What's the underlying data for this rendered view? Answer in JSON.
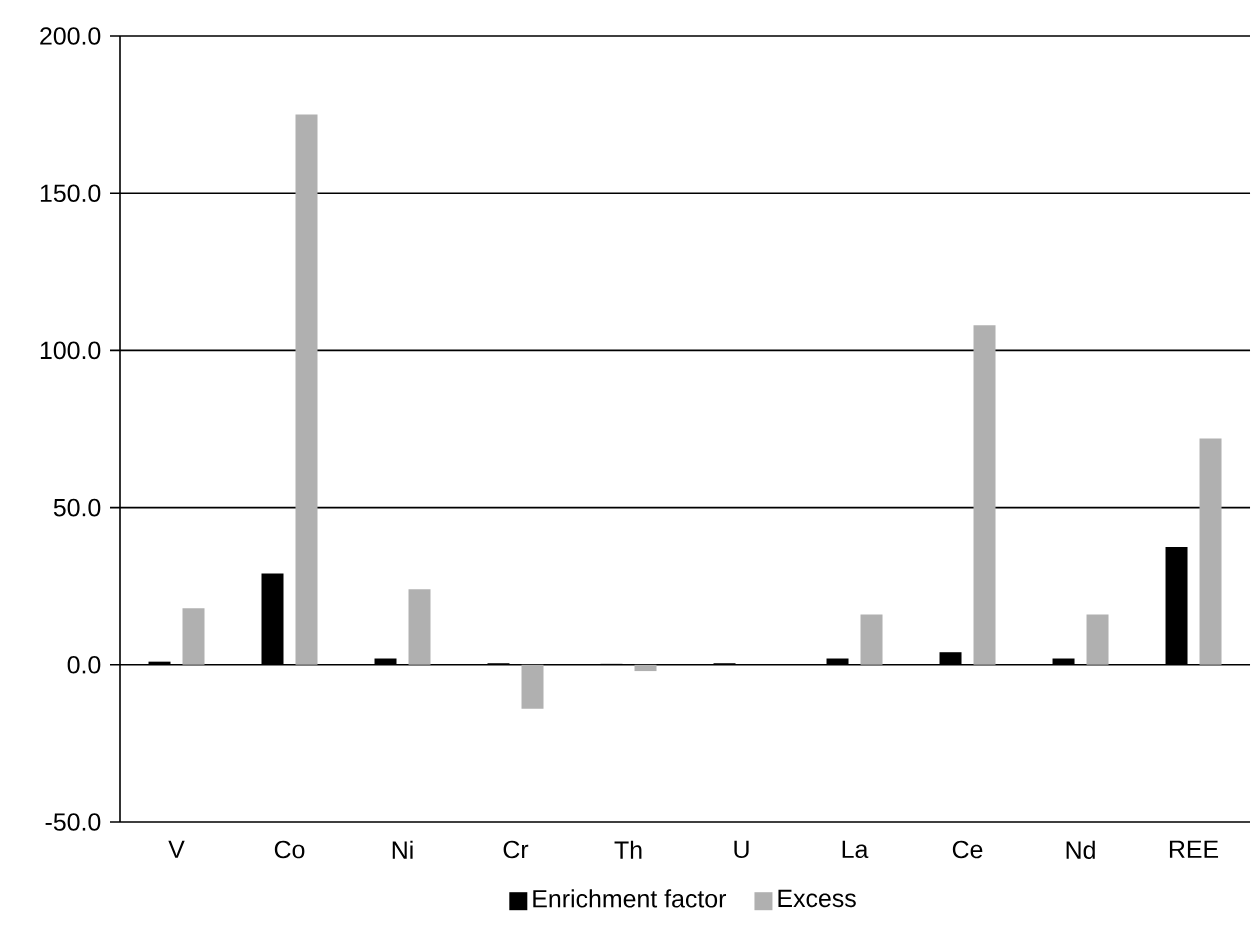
{
  "chart_data": {
    "type": "bar",
    "categories": [
      "V",
      "Co",
      "Ni",
      "Cr",
      "Th",
      "U",
      "La",
      "Ce",
      "Nd",
      "REE"
    ],
    "series": [
      {
        "name": "Enrichment factor",
        "color": "#000000",
        "values": [
          1.0,
          29,
          2.0,
          0.5,
          0.3,
          0.5,
          2.0,
          4.0,
          2.0,
          37.5
        ]
      },
      {
        "name": "Excess",
        "color": "#b0b0b0",
        "values": [
          18,
          175,
          24,
          -14,
          -2,
          0,
          16,
          108,
          16,
          72
        ]
      }
    ],
    "ylim": [
      -50,
      200
    ],
    "yticks": [
      {
        "value": -50,
        "label": "-50.0"
      },
      {
        "value": 0,
        "label": "0.0"
      },
      {
        "value": 50,
        "label": "50.0"
      },
      {
        "value": 100,
        "label": "100.0"
      },
      {
        "value": 150,
        "label": "150.0"
      },
      {
        "value": 200,
        "label": "200.0"
      }
    ],
    "grid": "y",
    "legend": "bottom"
  }
}
